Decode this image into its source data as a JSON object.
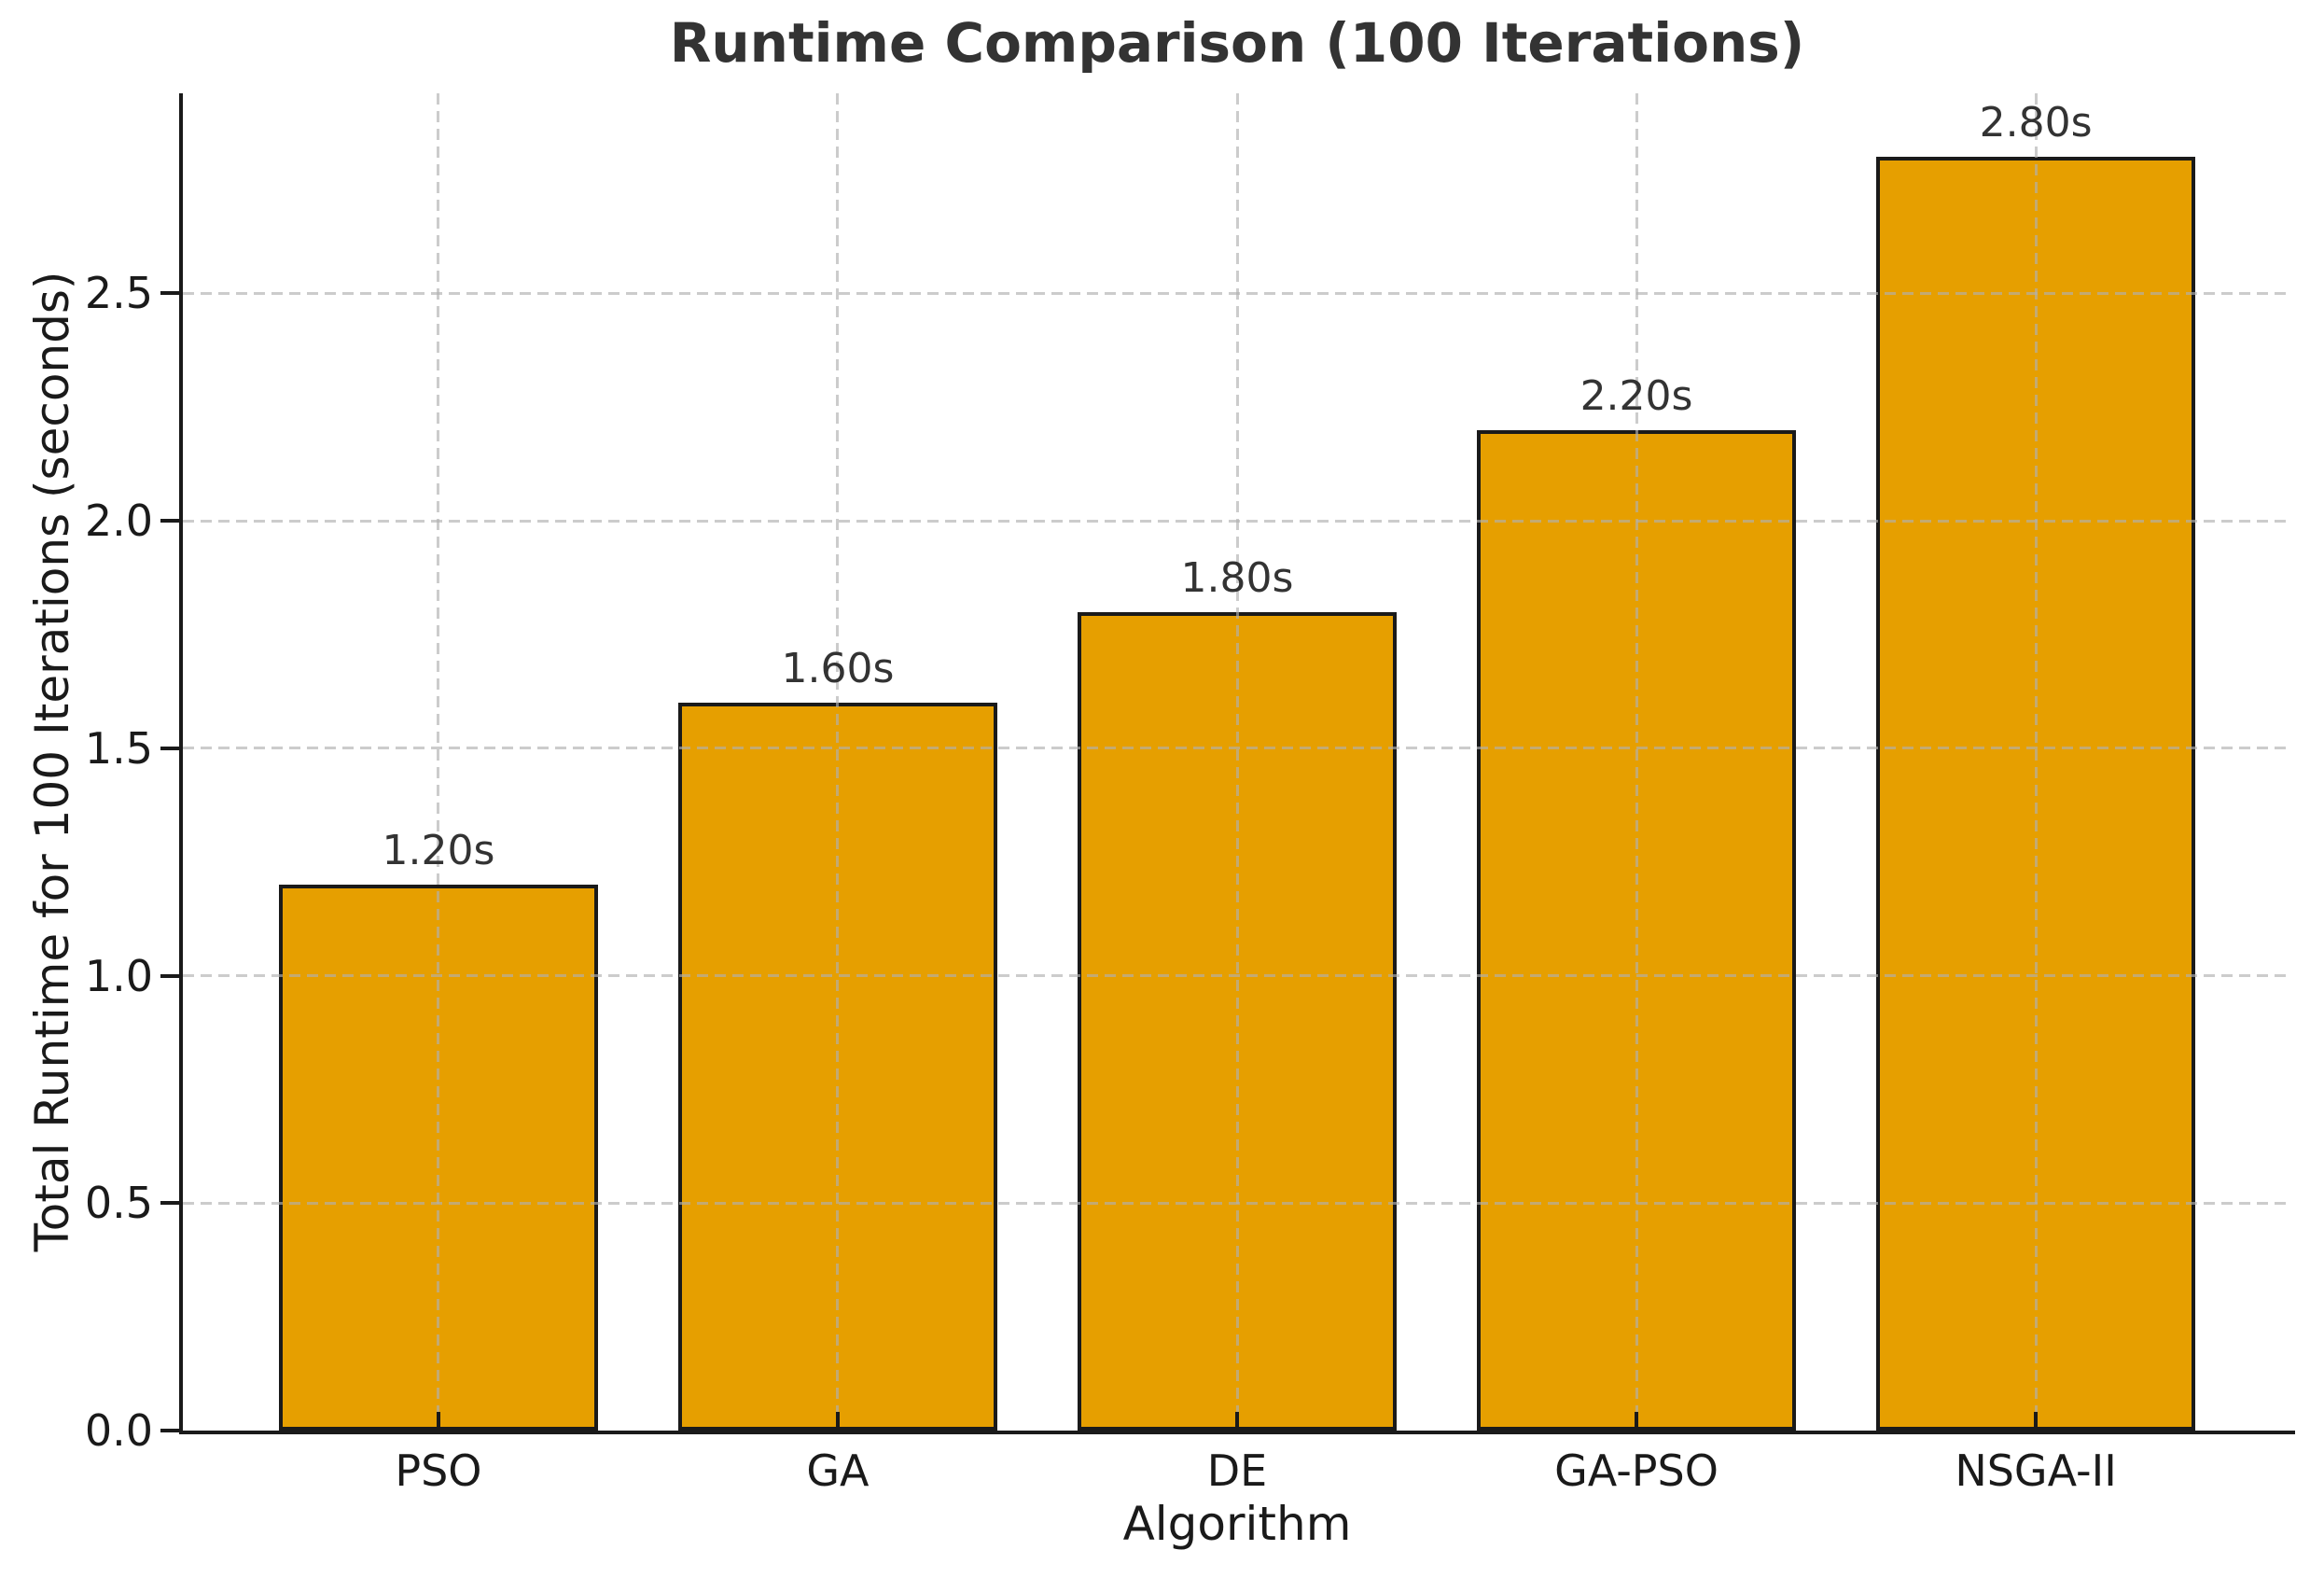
{
  "figure": {
    "background": "#ffffff"
  },
  "chart_data": {
    "type": "bar",
    "title": "Runtime Comparison (100 Iterations)",
    "xlabel": "Algorithm",
    "ylabel": "Total Runtime for 100 Iterations (seconds)",
    "categories": [
      "PSO",
      "GA",
      "DE",
      "GA-PSO",
      "NSGA-II"
    ],
    "values": [
      1.2,
      1.6,
      1.8,
      2.2,
      2.8
    ],
    "bar_value_labels": [
      "1.20s",
      "1.60s",
      "1.80s",
      "2.20s",
      "2.80s"
    ],
    "yticks": [
      0.0,
      0.5,
      1.0,
      1.5,
      2.0,
      2.5
    ],
    "ytick_labels": [
      "0.0",
      "0.5",
      "1.0",
      "1.5",
      "2.0",
      "2.5"
    ],
    "ylim": [
      0,
      2.94
    ],
    "xlim": [
      -0.64,
      4.64
    ],
    "bar_width": 0.8,
    "grid": "dashed, both axes, drawn above bars",
    "legend": "none",
    "colors": {
      "bar_fill": "#E69F00",
      "bar_edge": "#1a1a1a",
      "spine": "#1a1a1a",
      "grid": "#b0b0b0",
      "title_text": "#333333",
      "value_label_text": "#333333",
      "tick_text": "#1a1a1a"
    }
  }
}
